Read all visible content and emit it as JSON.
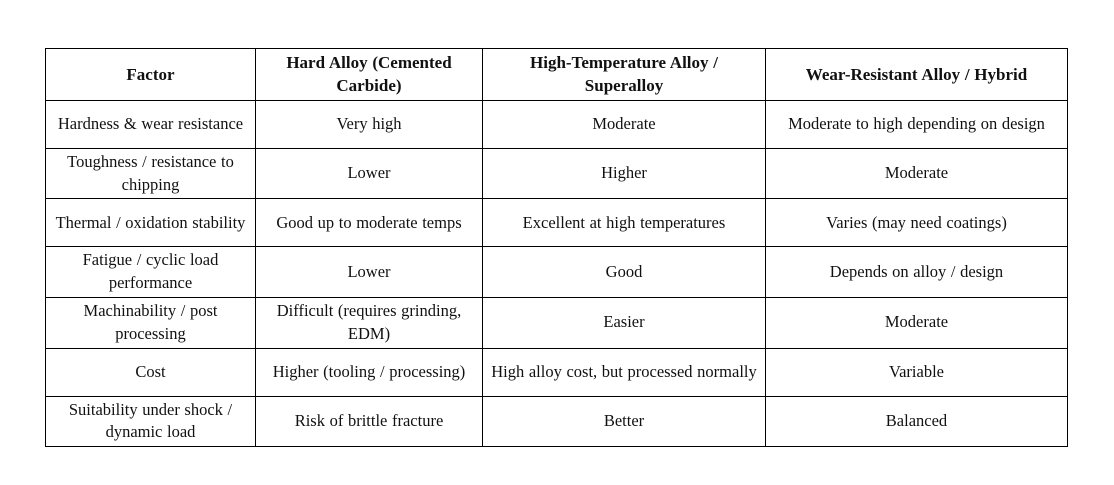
{
  "table": {
    "columns": [
      "Factor",
      "Hard Alloy (Cemented Carbide)",
      "High-Temperature Alloy / Superalloy",
      "Wear-Resistant Alloy / Hybrid"
    ],
    "rows": [
      [
        "Hardness & wear resistance",
        "Very high",
        "Moderate",
        "Moderate to high depending on design"
      ],
      [
        "Toughness / resistance to chipping",
        "Lower",
        "Higher",
        "Moderate"
      ],
      [
        "Thermal / oxidation stability",
        "Good up to moderate temps",
        "Excellent at high temperatures",
        "Varies (may need coatings)"
      ],
      [
        "Fatigue / cyclic load performance",
        "Lower",
        "Good",
        "Depends on alloy / design"
      ],
      [
        "Machinability / post processing",
        "Difficult (requires grinding, EDM)",
        "Easier",
        "Moderate"
      ],
      [
        "Cost",
        "Higher (tooling / processing)",
        "High alloy cost, but processed normally",
        "Variable"
      ],
      [
        "Suitability under shock / dynamic load",
        "Risk of brittle fracture",
        "Better",
        "Balanced"
      ]
    ]
  },
  "colors": {
    "border": "#000000",
    "text": "#111111",
    "background": "#ffffff"
  }
}
